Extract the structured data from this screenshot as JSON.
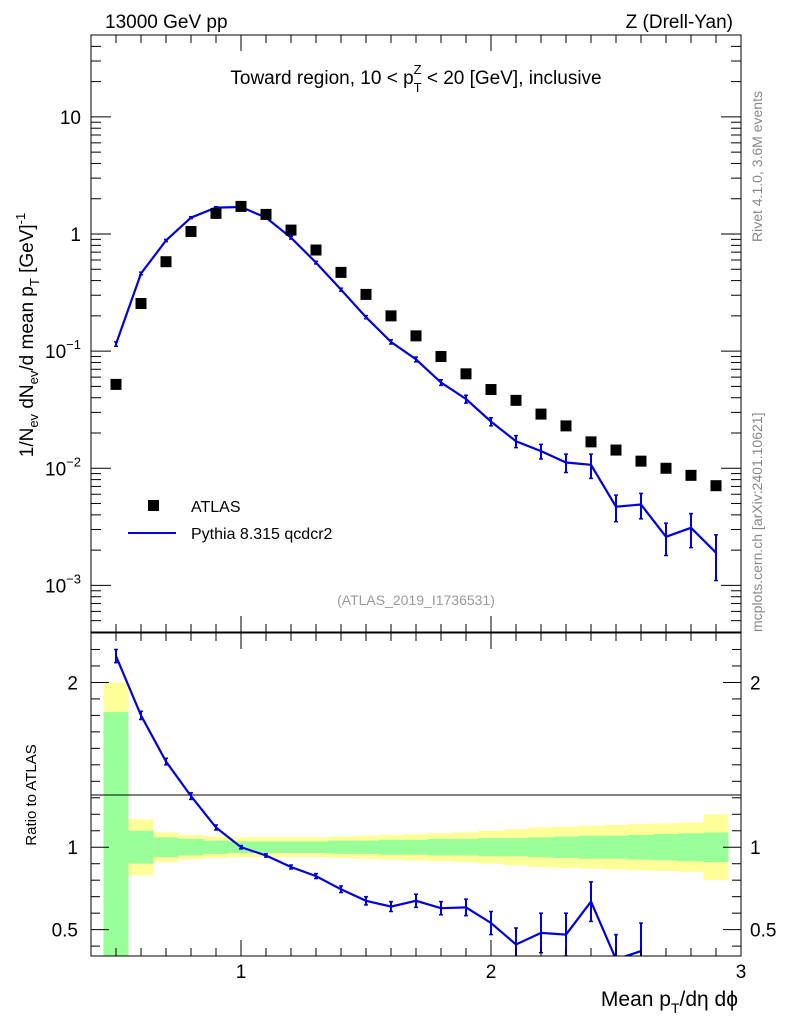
{
  "header": {
    "left": "13000 GeV pp",
    "right": "Z (Drell-Yan)"
  },
  "side_labels": {
    "rivet": "Rivet 4.1.0,  3.6M events",
    "mcplots": "mcplots.cern.ch [arXiv:2401.10621]"
  },
  "colors": {
    "mc": "#0000dd",
    "data": "#000000",
    "band_inner": "#99ff99",
    "band_outer": "#ffff99"
  },
  "chart_data": [
    {
      "type": "scatter",
      "title_parts": {
        "prefix": "Toward region, 10 < p",
        "sub": "T",
        "sup": "Z",
        "suffix": " < 20 [GeV], inclusive"
      },
      "ylabel": "1/Nev dNev/d mean pT [GeV]^-1",
      "ylabel_parts": {
        "a": "1/N",
        "b": "ev",
        "c": " dN",
        "d": "ev",
        "e": "/d mean p",
        "f": "T",
        "g": " [GeV]",
        "h": "-1"
      },
      "yscale": "log",
      "ylim": [
        0.0004,
        50
      ],
      "xlim": [
        0.4,
        3.0
      ],
      "ytick_labels": [
        {
          "value": 10,
          "base": "10",
          "exp": ""
        },
        {
          "value": 1,
          "base": "1",
          "exp": ""
        },
        {
          "value": 0.1,
          "base": "10",
          "exp": "−1"
        },
        {
          "value": 0.01,
          "base": "10",
          "exp": "−2"
        },
        {
          "value": 0.001,
          "base": "10",
          "exp": "−3"
        }
      ],
      "watermark": "(ATLAS_2019_I1736531)",
      "legend": [
        "ATLAS",
        "Pythia 8.315 qcdcr2"
      ],
      "legend_position": "bottom-left",
      "series": [
        {
          "name": "ATLAS",
          "x": [
            0.5,
            0.6,
            0.7,
            0.8,
            0.9,
            1.0,
            1.1,
            1.2,
            1.3,
            1.4,
            1.5,
            1.6,
            1.7,
            1.8,
            1.9,
            2.0,
            2.1,
            2.2,
            2.3,
            2.4,
            2.5,
            2.6,
            2.7,
            2.8,
            2.9
          ],
          "y": [
            0.052,
            0.255,
            0.58,
            1.05,
            1.5,
            1.72,
            1.47,
            1.08,
            0.73,
            0.47,
            0.305,
            0.2,
            0.135,
            0.09,
            0.064,
            0.047,
            0.038,
            0.029,
            0.023,
            0.0168,
            0.0143,
            0.0115,
            0.01,
            0.0087,
            0.0071
          ]
        },
        {
          "name": "Pythia 8.315 qcdcr2",
          "x": [
            0.5,
            0.6,
            0.7,
            0.8,
            0.9,
            1.0,
            1.1,
            1.2,
            1.3,
            1.4,
            1.5,
            1.6,
            1.7,
            1.8,
            1.9,
            2.0,
            2.1,
            2.2,
            2.3,
            2.4,
            2.5,
            2.6,
            2.7,
            2.8,
            2.9
          ],
          "y": [
            0.115,
            0.46,
            0.88,
            1.38,
            1.68,
            1.7,
            1.38,
            0.93,
            0.57,
            0.335,
            0.195,
            0.12,
            0.085,
            0.054,
            0.039,
            0.025,
            0.017,
            0.014,
            0.0112,
            0.0107,
            0.0047,
            0.0049,
            0.0026,
            0.0031,
            0.0019
          ],
          "yerr": [
            0.005,
            0.012,
            0.018,
            0.025,
            0.03,
            0.03,
            0.03,
            0.025,
            0.015,
            0.01,
            0.006,
            0.005,
            0.004,
            0.003,
            0.003,
            0.002,
            0.002,
            0.002,
            0.002,
            0.0025,
            0.0012,
            0.0012,
            0.0008,
            0.001,
            0.0008
          ]
        }
      ]
    },
    {
      "type": "line",
      "ylabel": "Ratio to ATLAS",
      "xlabel_parts": {
        "a": "Mean p",
        "b": "T",
        "c": "/dη dϕ"
      },
      "xlim": [
        0.4,
        3.0
      ],
      "ylim": [
        0.34,
        2.3
      ],
      "xticks": [
        1,
        2,
        3
      ],
      "xtick_labels": [
        "1",
        "2",
        "3"
      ],
      "yticks": [
        0.5,
        1,
        2
      ],
      "ytick_labels": [
        "0.5",
        "1",
        "2"
      ],
      "reference_line": 1.0,
      "bands": {
        "edges": [
          0.45,
          0.55,
          0.65,
          0.75,
          0.85,
          0.95,
          1.05,
          1.15,
          1.25,
          1.35,
          1.45,
          1.55,
          1.65,
          1.75,
          1.85,
          1.95,
          2.05,
          2.15,
          2.25,
          2.35,
          2.45,
          2.55,
          2.65,
          2.75,
          2.85,
          2.95
        ],
        "inner": [
          0.82,
          0.1,
          0.06,
          0.05,
          0.04,
          0.035,
          0.035,
          0.035,
          0.035,
          0.04,
          0.04,
          0.045,
          0.045,
          0.05,
          0.05,
          0.055,
          0.055,
          0.06,
          0.065,
          0.07,
          0.07,
          0.075,
          0.08,
          0.085,
          0.09
        ],
        "outer": [
          1.0,
          0.17,
          0.09,
          0.075,
          0.065,
          0.06,
          0.06,
          0.06,
          0.06,
          0.065,
          0.07,
          0.075,
          0.08,
          0.085,
          0.09,
          0.1,
          0.11,
          0.12,
          0.125,
          0.13,
          0.135,
          0.14,
          0.145,
          0.15,
          0.2
        ]
      },
      "series": [
        {
          "name": "Pythia 8.315 qcdcr2 / ATLAS",
          "x": [
            0.5,
            0.6,
            0.7,
            0.8,
            0.9,
            1.0,
            1.1,
            1.2,
            1.3,
            1.4,
            1.5,
            1.6,
            1.7,
            1.8,
            1.9,
            2.0,
            2.1,
            2.2,
            2.3,
            2.4,
            2.5,
            2.6
          ],
          "y": [
            2.16,
            1.8,
            1.52,
            1.31,
            1.12,
            1.0,
            0.95,
            0.88,
            0.825,
            0.745,
            0.675,
            0.64,
            0.675,
            0.63,
            0.635,
            0.54,
            0.41,
            0.48,
            0.47,
            0.67,
            0.32,
            0.37
          ],
          "yerr": [
            0.04,
            0.025,
            0.02,
            0.02,
            0.015,
            0.01,
            0.01,
            0.012,
            0.015,
            0.02,
            0.025,
            0.03,
            0.04,
            0.04,
            0.05,
            0.07,
            0.1,
            0.12,
            0.13,
            0.12,
            0.15,
            0.17
          ]
        }
      ]
    }
  ]
}
